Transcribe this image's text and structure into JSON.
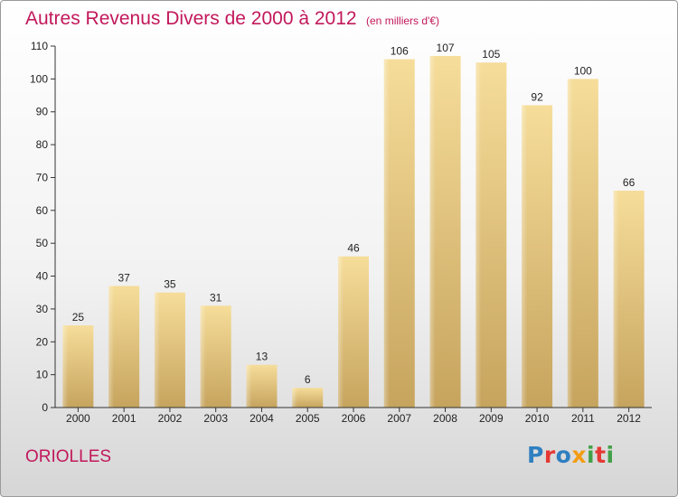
{
  "header": {
    "title": "Autres Revenus Divers de 2000 à 2012",
    "subtitle": "(en milliers d'€)"
  },
  "footer": {
    "place": "ORIOLLES",
    "logo_text": "Proxiti"
  },
  "colors": {
    "title": "#c2185b",
    "bar_light": "#f6dd9a",
    "bar_dark": "#c6a45e"
  },
  "chart_data": {
    "type": "bar",
    "title": "Autres Revenus Divers de 2000 à 2012",
    "subtitle": "(en milliers d'€)",
    "xlabel": "",
    "ylabel": "",
    "categories": [
      "2000",
      "2001",
      "2002",
      "2003",
      "2004",
      "2005",
      "2006",
      "2007",
      "2008",
      "2009",
      "2010",
      "2011",
      "2012"
    ],
    "values": [
      25,
      37,
      35,
      31,
      13,
      6,
      46,
      106,
      107,
      105,
      92,
      100,
      66
    ],
    "ylim": [
      0,
      110
    ],
    "yticks": [
      0,
      10,
      20,
      30,
      40,
      50,
      60,
      70,
      80,
      90,
      100,
      110
    ],
    "grid": false,
    "data_labels": true
  }
}
